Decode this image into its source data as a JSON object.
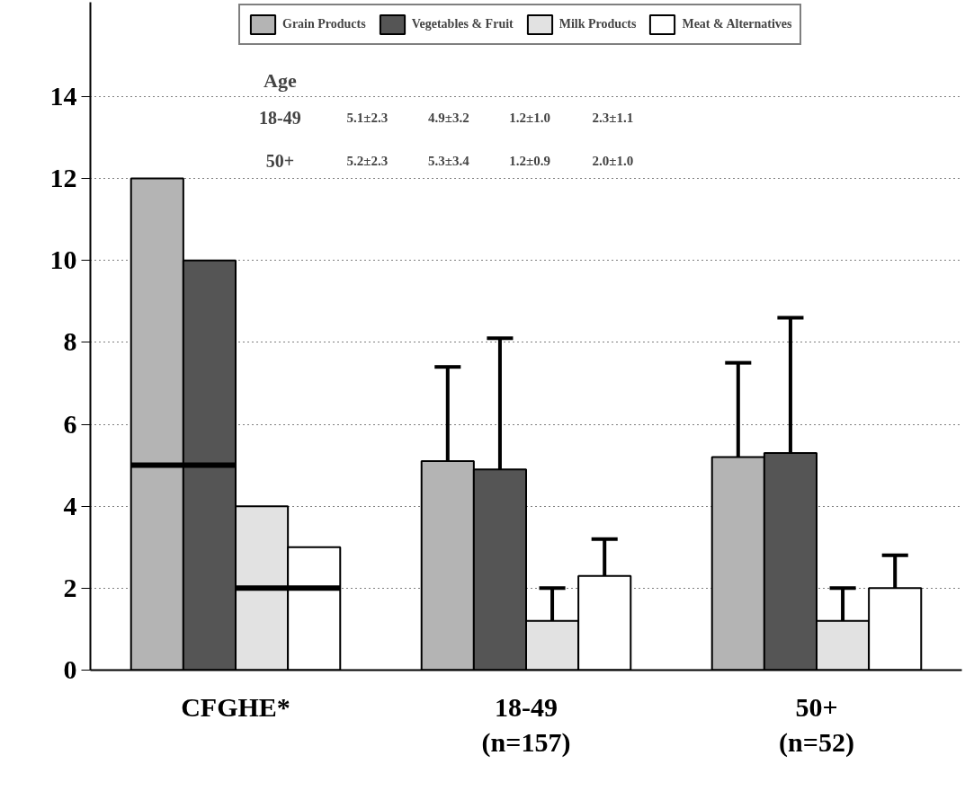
{
  "chart_data": {
    "type": "bar",
    "categories": [
      "CFGHE*",
      "18-49\n(n=157)",
      "50+\n(n=52)"
    ],
    "series": [
      {
        "name": "Grain Products",
        "color": "#b4b4b4",
        "values": [
          12,
          5.1,
          5.2
        ],
        "errors": [
          null,
          [
            5.1,
            7.4
          ],
          [
            5.2,
            7.5
          ]
        ]
      },
      {
        "name": "Vegetables & Fruit",
        "color": "#555555",
        "values": [
          10,
          4.9,
          5.3
        ],
        "errors": [
          null,
          [
            4.9,
            8.1
          ],
          [
            5.3,
            8.6
          ]
        ]
      },
      {
        "name": "Milk Products",
        "color": "#e2e2e2",
        "values": [
          4,
          1.2,
          1.2
        ],
        "errors": [
          null,
          [
            1.2,
            2.0
          ],
          [
            1.2,
            2.0
          ]
        ]
      },
      {
        "name": "Meat & Alternatives",
        "color": "#ffffff",
        "values": [
          3,
          2.3,
          2.0
        ],
        "errors": [
          null,
          [
            2.3,
            3.2
          ],
          [
            2.0,
            2.8
          ]
        ]
      }
    ],
    "annotations": [
      "Age",
      "18-49",
      "5.1±2.3",
      "4.9±3.2",
      "1.2±1.0",
      "2.3±1.1",
      "50+",
      "5.2±2.3",
      "5.3±3.4",
      "1.2±0.9",
      "2.0±1.0"
    ],
    "ref_lines": [
      {
        "axis": "y",
        "value": 5,
        "color": "#000000"
      },
      {
        "axis": "y",
        "value": 2,
        "color": "#000000"
      }
    ],
    "ylim": [
      0,
      16.3
    ],
    "yticks": [
      0,
      2,
      4,
      6,
      8,
      10,
      12,
      14
    ],
    "grid": "y",
    "legend": "top left"
  }
}
